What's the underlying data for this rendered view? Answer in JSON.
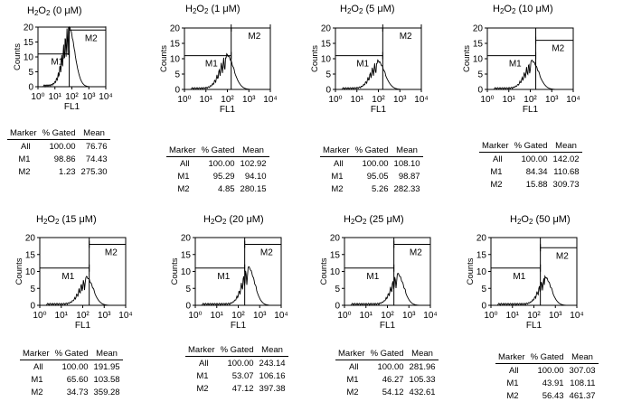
{
  "table_headers": [
    "Marker",
    "% Gated",
    "Mean"
  ],
  "chart_data": [
    {
      "type": "histogram",
      "title_conc": "(0 μM)",
      "xlabel": "FL1",
      "ylabel": "Counts",
      "xscale": "log",
      "xlim": [
        1,
        10000
      ],
      "ylim": [
        0,
        20
      ],
      "yticks": [
        0,
        5,
        10,
        15,
        20
      ],
      "xticks": [
        "10⁰",
        "10¹",
        "10²",
        "10³",
        "10⁴"
      ],
      "peak_log10": 1.8,
      "peak_counts": 20,
      "spread": 0.35,
      "markers": [
        {
          "name": "M1",
          "x_range": [
            1,
            70
          ],
          "level": 11
        },
        {
          "name": "M2",
          "x_range": [
            70,
            10000
          ],
          "level": 19
        }
      ],
      "stats": [
        [
          "All",
          "100.00",
          "76.76"
        ],
        [
          "M1",
          "98.86",
          "74.43"
        ],
        [
          "M2",
          "1.23",
          "275.30"
        ]
      ]
    },
    {
      "type": "histogram",
      "title_conc": "(1 μM)",
      "xlabel": "FL1",
      "ylabel": "Counts",
      "xscale": "log",
      "xlim": [
        1,
        10000
      ],
      "ylim": [
        0,
        20
      ],
      "yticks": [
        0,
        5,
        10,
        15,
        20
      ],
      "xticks": [
        "10⁰",
        "10¹",
        "10²",
        "10³",
        "10⁴"
      ],
      "peak_log10": 1.95,
      "peak_counts": 11,
      "spread": 0.33,
      "markers": [
        {
          "name": "M1",
          "x_range": [
            1,
            150
          ],
          "level": 11
        },
        {
          "name": "M2",
          "x_range": [
            150,
            10000
          ],
          "level": 20
        }
      ],
      "stats": [
        [
          "All",
          "100.00",
          "102.92"
        ],
        [
          "M1",
          "95.29",
          "94.10"
        ],
        [
          "M2",
          "4.85",
          "280.15"
        ]
      ]
    },
    {
      "type": "histogram",
      "title_conc": "(5 μM)",
      "xlabel": "FL1",
      "ylabel": "Counts",
      "xscale": "log",
      "xlim": [
        1,
        10000
      ],
      "ylim": [
        0,
        20
      ],
      "yticks": [
        0,
        5,
        10,
        15,
        20
      ],
      "xticks": [
        "10⁰",
        "10¹",
        "10²",
        "10³",
        "10⁴"
      ],
      "peak_log10": 1.95,
      "peak_counts": 9,
      "spread": 0.33,
      "markers": [
        {
          "name": "M1",
          "x_range": [
            1,
            160
          ],
          "level": 11
        },
        {
          "name": "M2",
          "x_range": [
            160,
            10000
          ],
          "level": 20
        }
      ],
      "stats": [
        [
          "All",
          "100.00",
          "108.10"
        ],
        [
          "M1",
          "95.05",
          "98.87"
        ],
        [
          "M2",
          "5.26",
          "282.33"
        ]
      ]
    },
    {
      "type": "histogram",
      "title_conc": "(10 μM)",
      "xlabel": "FL1",
      "ylabel": "Counts",
      "xscale": "log",
      "xlim": [
        1,
        10000
      ],
      "ylim": [
        0,
        20
      ],
      "yticks": [
        0,
        5,
        10,
        15,
        20
      ],
      "xticks": [
        "10⁰",
        "10¹",
        "10²",
        "10³",
        "10⁴"
      ],
      "peak_log10": 2.05,
      "peak_counts": 9,
      "spread": 0.33,
      "markers": [
        {
          "name": "M1",
          "x_range": [
            1,
            180
          ],
          "level": 11
        },
        {
          "name": "M2",
          "x_range": [
            180,
            10000
          ],
          "level": 16
        }
      ],
      "stats": [
        [
          "All",
          "100.00",
          "142.02"
        ],
        [
          "M1",
          "84.34",
          "110.68"
        ],
        [
          "M2",
          "15.88",
          "309.73"
        ]
      ]
    },
    {
      "type": "histogram",
      "title_conc": "(15 μM)",
      "xlabel": "FL1",
      "ylabel": "Counts",
      "xscale": "log",
      "xlim": [
        1,
        10000
      ],
      "ylim": [
        0,
        20
      ],
      "yticks": [
        0,
        5,
        10,
        15,
        20
      ],
      "xticks": [
        "10⁰",
        "10¹",
        "10²",
        "10³",
        "10⁴"
      ],
      "peak_log10": 2.15,
      "peak_counts": 8,
      "spread": 0.32,
      "markers": [
        {
          "name": "M1",
          "x_range": [
            1,
            200
          ],
          "level": 11
        },
        {
          "name": "M2",
          "x_range": [
            200,
            10000
          ],
          "level": 18
        }
      ],
      "stats": [
        [
          "All",
          "100.00",
          "191.95"
        ],
        [
          "M1",
          "65.60",
          "103.58"
        ],
        [
          "M2",
          "34.73",
          "359.28"
        ]
      ]
    },
    {
      "type": "histogram",
      "title_conc": "(20 μM)",
      "xlabel": "FL1",
      "ylabel": "Counts",
      "xscale": "log",
      "xlim": [
        1,
        10000
      ],
      "ylim": [
        0,
        20
      ],
      "yticks": [
        0,
        5,
        10,
        15,
        20
      ],
      "xticks": [
        "10⁰",
        "10¹",
        "10²",
        "10³",
        "10⁴"
      ],
      "peak_log10": 2.45,
      "peak_counts": 11,
      "spread": 0.3,
      "markers": [
        {
          "name": "M1",
          "x_range": [
            1,
            200
          ],
          "level": 11
        },
        {
          "name": "M2",
          "x_range": [
            200,
            10000
          ],
          "level": 18
        }
      ],
      "stats": [
        [
          "All",
          "100.00",
          "243.14"
        ],
        [
          "M1",
          "53.07",
          "106.16"
        ],
        [
          "M2",
          "47.12",
          "397.38"
        ]
      ]
    },
    {
      "type": "histogram",
      "title_conc": "(25 μM)",
      "xlabel": "FL1",
      "ylabel": "Counts",
      "xscale": "log",
      "xlim": [
        1,
        10000
      ],
      "ylim": [
        0,
        20
      ],
      "yticks": [
        0,
        5,
        10,
        15,
        20
      ],
      "xticks": [
        "10⁰",
        "10¹",
        "10²",
        "10³",
        "10⁴"
      ],
      "peak_log10": 2.45,
      "peak_counts": 9,
      "spread": 0.3,
      "markers": [
        {
          "name": "M1",
          "x_range": [
            1,
            200
          ],
          "level": 11
        },
        {
          "name": "M2",
          "x_range": [
            200,
            10000
          ],
          "level": 18
        }
      ],
      "stats": [
        [
          "All",
          "100.00",
          "281.96"
        ],
        [
          "M1",
          "46.27",
          "105.33"
        ],
        [
          "M2",
          "54.12",
          "432.61"
        ]
      ]
    },
    {
      "type": "histogram",
      "title_conc": "(50 μM)",
      "xlabel": "FL1",
      "ylabel": "Counts",
      "xscale": "log",
      "xlim": [
        1,
        10000
      ],
      "ylim": [
        0,
        20
      ],
      "yticks": [
        0,
        5,
        10,
        15,
        20
      ],
      "xticks": [
        "10⁰",
        "10¹",
        "10²",
        "10³",
        "10⁴"
      ],
      "peak_log10": 2.5,
      "peak_counts": 8,
      "spread": 0.3,
      "markers": [
        {
          "name": "M1",
          "x_range": [
            1,
            200
          ],
          "level": 11
        },
        {
          "name": "M2",
          "x_range": [
            200,
            10000
          ],
          "level": 17
        }
      ],
      "stats": [
        [
          "All",
          "100.00",
          "307.03"
        ],
        [
          "M1",
          "43.91",
          "108.11"
        ],
        [
          "M2",
          "56.43",
          "461.37"
        ]
      ]
    }
  ]
}
